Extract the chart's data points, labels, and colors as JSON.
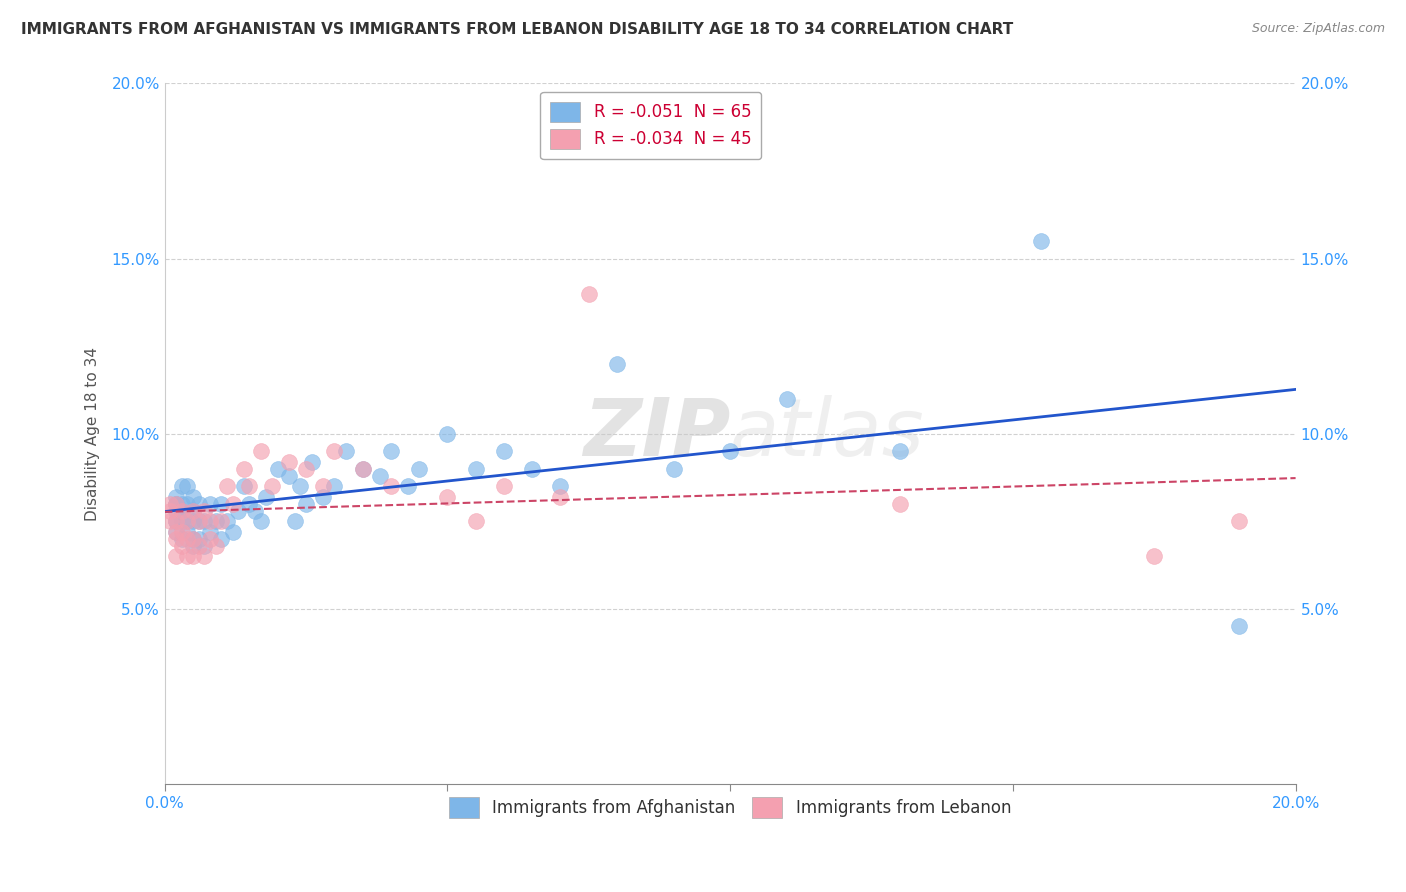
{
  "title": "IMMIGRANTS FROM AFGHANISTAN VS IMMIGRANTS FROM LEBANON DISABILITY AGE 18 TO 34 CORRELATION CHART",
  "source": "Source: ZipAtlas.com",
  "ylabel": "Disability Age 18 to 34",
  "xlim": [
    0.0,
    0.2
  ],
  "ylim": [
    0.0,
    0.2
  ],
  "grid_color": "#cccccc",
  "background_color": "#ffffff",
  "afghanistan_color": "#7eb6e8",
  "lebanon_color": "#f4a0b0",
  "afghanistan_R": "-0.051",
  "afghanistan_N": "65",
  "lebanon_R": "-0.034",
  "lebanon_N": "45",
  "legend_label_1": "Immigrants from Afghanistan",
  "legend_label_2": "Immigrants from Lebanon",
  "watermark_zip": "ZIP",
  "watermark_atlas": "atlas",
  "afghanistan_x": [
    0.002,
    0.002,
    0.002,
    0.002,
    0.002,
    0.002,
    0.002,
    0.003,
    0.003,
    0.003,
    0.003,
    0.003,
    0.004,
    0.004,
    0.004,
    0.004,
    0.005,
    0.005,
    0.005,
    0.005,
    0.005,
    0.006,
    0.006,
    0.006,
    0.007,
    0.007,
    0.008,
    0.008,
    0.009,
    0.01,
    0.01,
    0.011,
    0.012,
    0.013,
    0.014,
    0.015,
    0.016,
    0.017,
    0.018,
    0.02,
    0.022,
    0.023,
    0.024,
    0.025,
    0.026,
    0.028,
    0.03,
    0.032,
    0.035,
    0.038,
    0.04,
    0.043,
    0.045,
    0.05,
    0.055,
    0.06,
    0.065,
    0.07,
    0.08,
    0.09,
    0.1,
    0.11,
    0.13,
    0.155,
    0.19
  ],
  "afghanistan_y": [
    0.072,
    0.075,
    0.075,
    0.078,
    0.08,
    0.08,
    0.082,
    0.07,
    0.075,
    0.078,
    0.08,
    0.085,
    0.072,
    0.075,
    0.08,
    0.085,
    0.068,
    0.07,
    0.075,
    0.078,
    0.082,
    0.07,
    0.075,
    0.08,
    0.068,
    0.075,
    0.072,
    0.08,
    0.075,
    0.07,
    0.08,
    0.075,
    0.072,
    0.078,
    0.085,
    0.08,
    0.078,
    0.075,
    0.082,
    0.09,
    0.088,
    0.075,
    0.085,
    0.08,
    0.092,
    0.082,
    0.085,
    0.095,
    0.09,
    0.088,
    0.095,
    0.085,
    0.09,
    0.1,
    0.09,
    0.095,
    0.09,
    0.085,
    0.12,
    0.09,
    0.095,
    0.11,
    0.095,
    0.155,
    0.045
  ],
  "lebanon_x": [
    0.001,
    0.001,
    0.001,
    0.002,
    0.002,
    0.002,
    0.002,
    0.002,
    0.003,
    0.003,
    0.003,
    0.004,
    0.004,
    0.004,
    0.005,
    0.005,
    0.005,
    0.006,
    0.006,
    0.007,
    0.007,
    0.008,
    0.008,
    0.009,
    0.01,
    0.011,
    0.012,
    0.014,
    0.015,
    0.017,
    0.019,
    0.022,
    0.025,
    0.028,
    0.03,
    0.035,
    0.04,
    0.05,
    0.055,
    0.06,
    0.07,
    0.075,
    0.13,
    0.175,
    0.19
  ],
  "lebanon_y": [
    0.075,
    0.078,
    0.08,
    0.065,
    0.07,
    0.072,
    0.075,
    0.08,
    0.068,
    0.072,
    0.078,
    0.065,
    0.07,
    0.075,
    0.065,
    0.07,
    0.078,
    0.068,
    0.075,
    0.065,
    0.078,
    0.07,
    0.075,
    0.068,
    0.075,
    0.085,
    0.08,
    0.09,
    0.085,
    0.095,
    0.085,
    0.092,
    0.09,
    0.085,
    0.095,
    0.09,
    0.085,
    0.082,
    0.075,
    0.085,
    0.082,
    0.14,
    0.08,
    0.065,
    0.075
  ]
}
